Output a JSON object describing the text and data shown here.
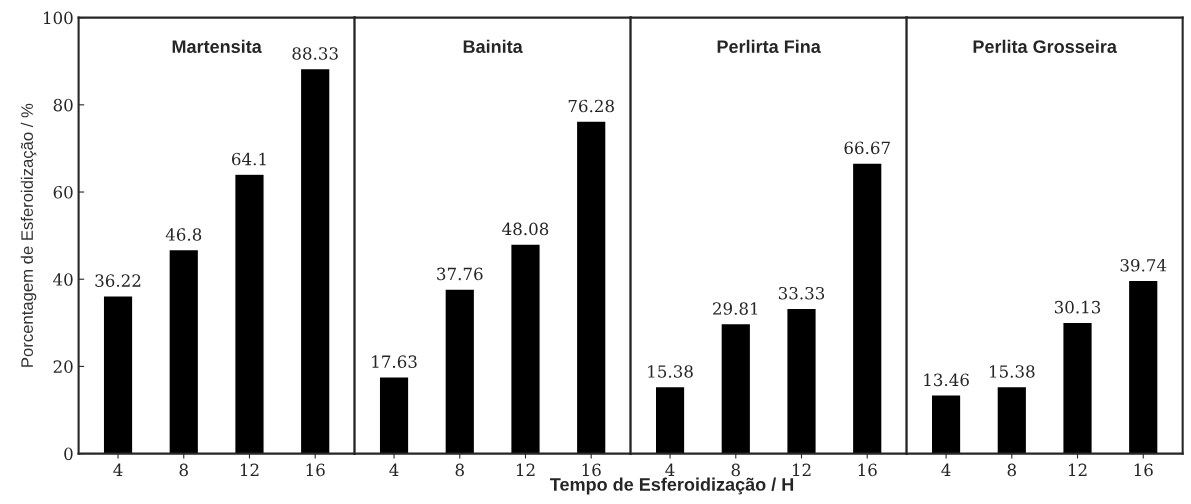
{
  "chart_data": [
    {
      "type": "bar",
      "title": "Martensita",
      "categories": [
        "4",
        "8",
        "12",
        "16"
      ],
      "values": [
        36.22,
        46.8,
        64.1,
        88.33
      ],
      "color": "#000000",
      "ylim": [
        0,
        100
      ],
      "yticks": [
        0,
        20,
        40,
        60,
        80,
        100
      ],
      "data_labels": true,
      "ylabel": "Porcentagem de Esferoidização / %"
    },
    {
      "type": "bar",
      "title": "Bainita",
      "categories": [
        "4",
        "8",
        "12",
        "16"
      ],
      "values": [
        17.63,
        37.76,
        48.08,
        76.28
      ],
      "color": "#000000",
      "ylim": [
        0,
        100
      ],
      "yticks": [
        0,
        20,
        40,
        60,
        80,
        100
      ],
      "data_labels": true,
      "tick_labels": "x"
    },
    {
      "type": "bar",
      "title": "Perlirta Fina",
      "categories": [
        "4",
        "8",
        "12",
        "16"
      ],
      "values": [
        15.38,
        29.81,
        33.33,
        66.67
      ],
      "color": "#000000",
      "ylim": [
        0,
        100
      ],
      "yticks": [
        0,
        20,
        40,
        60,
        80,
        100
      ],
      "data_labels": true,
      "tick_labels": "x",
      "xlabel": "Tempo de Esferoidização / H"
    },
    {
      "type": "bar",
      "title": "Perlita Grosseira",
      "categories": [
        "4",
        "8",
        "12",
        "16"
      ],
      "values": [
        13.46,
        15.38,
        30.13,
        39.74
      ],
      "color": "#000000",
      "ylim": [
        0,
        100
      ],
      "yticks": [
        0,
        20,
        40,
        60,
        80,
        100
      ],
      "data_labels": true,
      "tick_labels": "x"
    }
  ]
}
